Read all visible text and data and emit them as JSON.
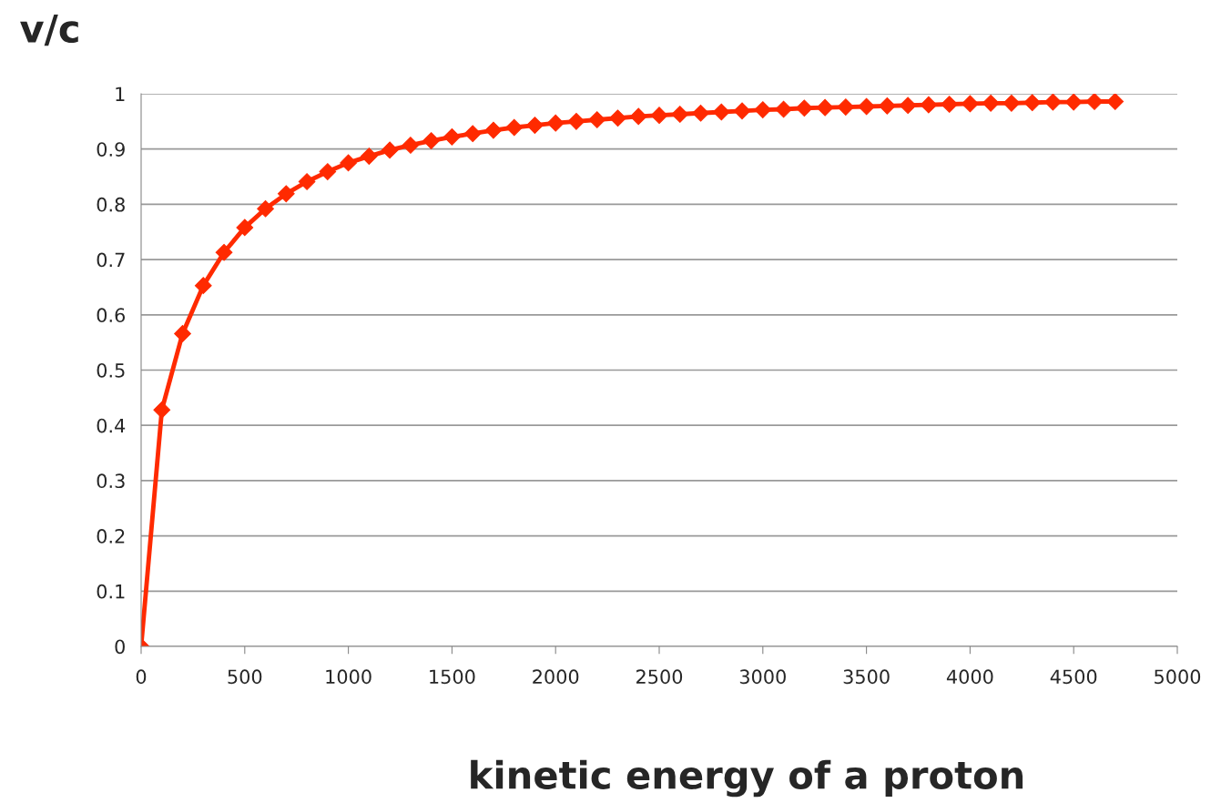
{
  "chart_data": {
    "type": "line",
    "xlabel": "kinetic energy of a proton",
    "ylabel": "v/c",
    "x": [
      0,
      100,
      200,
      300,
      400,
      500,
      600,
      700,
      800,
      900,
      1000,
      1100,
      1200,
      1300,
      1400,
      1500,
      1600,
      1700,
      1800,
      1900,
      2000,
      2100,
      2200,
      2300,
      2400,
      2500,
      2600,
      2700,
      2800,
      2900,
      3000,
      3100,
      3200,
      3300,
      3400,
      3500,
      3600,
      3700,
      3800,
      3900,
      4000,
      4100,
      4200,
      4300,
      4400,
      4500,
      4600,
      4700
    ],
    "series": [
      {
        "color": "#ff2a00",
        "values": [
          0,
          0.428,
          0.566,
          0.653,
          0.713,
          0.758,
          0.792,
          0.819,
          0.841,
          0.859,
          0.875,
          0.887,
          0.898,
          0.907,
          0.915,
          0.922,
          0.928,
          0.934,
          0.939,
          0.943,
          0.947,
          0.95,
          0.953,
          0.956,
          0.959,
          0.961,
          0.963,
          0.965,
          0.967,
          0.969,
          0.971,
          0.972,
          0.974,
          0.975,
          0.976,
          0.977,
          0.978,
          0.979,
          0.98,
          0.981,
          0.982,
          0.983,
          0.983,
          0.984,
          0.985,
          0.985,
          0.986,
          0.986
        ]
      }
    ],
    "xlim": [
      0,
      5000
    ],
    "xticks": [
      0,
      500,
      1000,
      1500,
      2000,
      2500,
      3000,
      3500,
      4000,
      4500,
      5000
    ],
    "ylim": [
      0,
      1
    ],
    "yticks": [
      0,
      0.1,
      0.2,
      0.3,
      0.4,
      0.5,
      0.6,
      0.7,
      0.8,
      0.9,
      1
    ],
    "grid": "y",
    "marker": "diamond",
    "line_style": "solid",
    "legend": false
  }
}
